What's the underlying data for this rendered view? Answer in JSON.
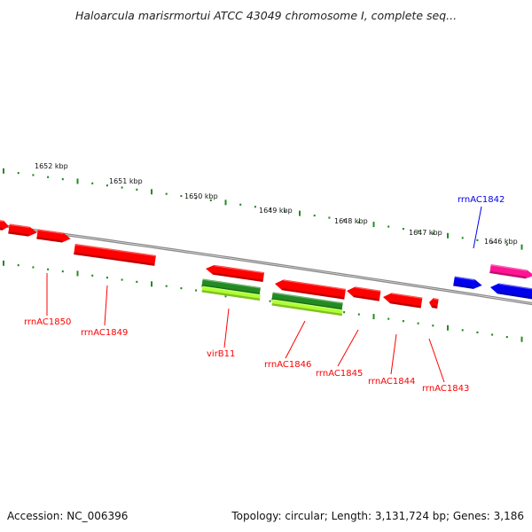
{
  "title": "Haloarcula marisrmortui ATCC 43049 chromosome I, complete seq...",
  "footer": {
    "accession": "Accession: NC_006396",
    "summary": "Topology: circular; Length: 3,131,724 bp; Genes: 3,186"
  },
  "colors": {
    "red": "#ff0000",
    "blue": "#0000ee",
    "pink": "#ff1493",
    "dark_green": "#228b22",
    "light_green": "#adff2f",
    "backbone": "#888888",
    "tick": "#228b22"
  },
  "scale_labels": [
    "1652 kbp",
    "1651 kbp",
    "1650 kbp",
    "1649 kbp",
    "1648 kbp",
    "1647 kbp",
    "1646 kbp"
  ],
  "gene_labels": [
    {
      "text": "rrnAC1850",
      "color": "red"
    },
    {
      "text": "rrnAC1849",
      "color": "red"
    },
    {
      "text": "virB11",
      "color": "red"
    },
    {
      "text": "rrnAC1846",
      "color": "red"
    },
    {
      "text": "rrnAC1845",
      "color": "red"
    },
    {
      "text": "rrnAC1844",
      "color": "red"
    },
    {
      "text": "rrnAC1843",
      "color": "red"
    },
    {
      "text": "rrnAC1842",
      "color": "blue"
    }
  ]
}
